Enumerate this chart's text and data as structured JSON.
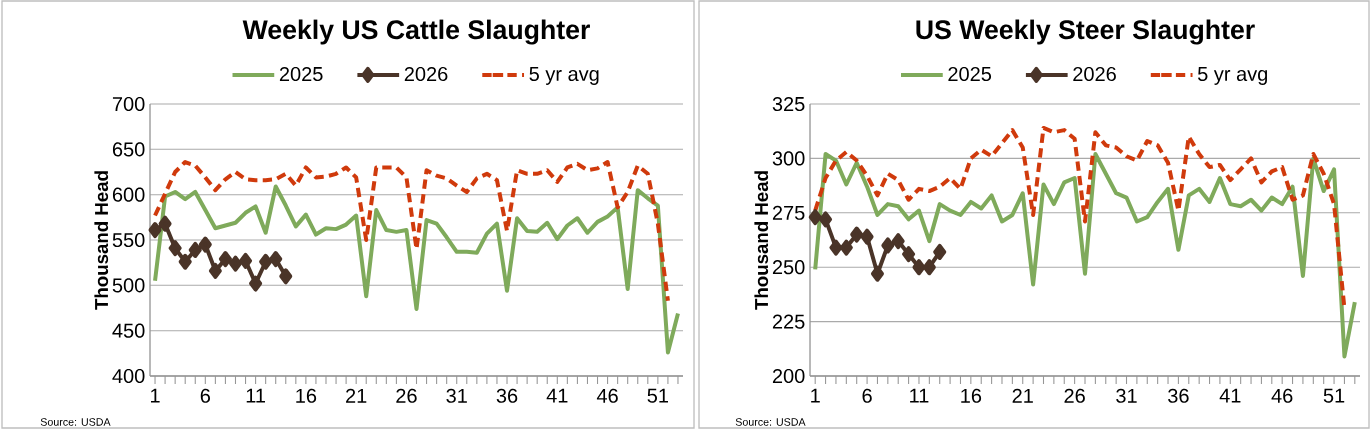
{
  "chart_data": [
    {
      "type": "line",
      "title": "Weekly US Cattle Slaughter",
      "ylabel": "Thousand Head",
      "categories": [
        "1",
        null,
        null,
        null,
        null,
        "6",
        null,
        null,
        null,
        null,
        "11",
        null,
        null,
        null,
        null,
        "16",
        null,
        null,
        null,
        null,
        "21",
        null,
        null,
        null,
        null,
        "26",
        null,
        null,
        null,
        null,
        "31",
        null,
        null,
        null,
        null,
        "36",
        null,
        null,
        null,
        null,
        "41",
        null,
        null,
        null,
        null,
        "46",
        null,
        null,
        null,
        null,
        "51",
        null,
        null
      ],
      "series": [
        {
          "name": "2025",
          "color": "#7faa5b",
          "line_style": "solid",
          "marker": "none",
          "values": [
            505,
            598,
            603,
            595,
            603,
            583,
            563,
            566,
            569,
            580,
            587,
            558,
            609,
            588,
            565,
            578,
            556,
            563,
            562,
            567,
            577,
            488,
            583,
            561,
            559,
            561,
            474,
            572,
            568,
            553,
            537,
            537,
            536,
            557,
            568,
            494,
            574,
            560,
            559,
            569,
            551,
            566,
            574,
            558,
            570,
            576,
            586,
            496,
            605,
            596,
            588,
            426,
            469
          ]
        },
        {
          "name": "2026",
          "color": "#4a3428",
          "line_style": "solid",
          "marker": "diamond",
          "values": [
            561,
            568,
            541,
            526,
            539,
            545,
            516,
            529,
            524,
            527,
            502,
            526,
            529,
            510,
            null,
            null,
            null,
            null,
            null,
            null,
            null,
            null,
            null,
            null,
            null,
            null,
            null,
            null,
            null,
            null,
            null,
            null,
            null,
            null,
            null,
            null,
            null,
            null,
            null,
            null,
            null,
            null,
            null,
            null,
            null,
            null,
            null,
            null,
            null,
            null,
            null,
            null,
            null
          ]
        },
        {
          "name": "5 yr avg",
          "color": "#d03a0c",
          "line_style": "dashed",
          "marker": "none",
          "values": [
            577,
            601,
            625,
            636,
            632,
            619,
            605,
            617,
            625,
            617,
            616,
            616,
            617,
            623,
            610,
            630,
            619,
            620,
            623,
            630,
            619,
            550,
            630,
            630,
            630,
            619,
            540,
            627,
            621,
            618,
            610,
            603,
            618,
            623,
            616,
            560,
            627,
            623,
            623,
            627,
            614,
            630,
            634,
            627,
            629,
            636,
            586,
            603,
            632,
            623,
            568,
            483,
            null
          ]
        }
      ],
      "ylim": [
        400,
        700
      ],
      "yticks": [
        400,
        450,
        500,
        550,
        600,
        650,
        700
      ],
      "grid": "y",
      "legend": "top",
      "annotations": [
        "Source: USDA"
      ]
    },
    {
      "type": "line",
      "title": "US Weekly Steer Slaughter",
      "ylabel": "Thousand Head",
      "categories": [
        "1",
        null,
        null,
        null,
        null,
        "6",
        null,
        null,
        null,
        null,
        "11",
        null,
        null,
        null,
        null,
        "16",
        null,
        null,
        null,
        null,
        "21",
        null,
        null,
        null,
        null,
        "26",
        null,
        null,
        null,
        null,
        "31",
        null,
        null,
        null,
        null,
        "36",
        null,
        null,
        null,
        null,
        "41",
        null,
        null,
        null,
        null,
        "46",
        null,
        null,
        null,
        null,
        "51",
        null,
        null
      ],
      "series": [
        {
          "name": "2025",
          "color": "#7faa5b",
          "line_style": "solid",
          "marker": "none",
          "values": [
            249,
            302,
            299,
            288,
            298,
            287,
            274,
            279,
            278,
            272,
            276,
            262,
            279,
            276,
            274,
            280,
            277,
            283,
            271,
            274,
            284,
            242,
            288,
            279,
            289,
            291,
            247,
            302,
            293,
            284,
            282,
            271,
            273,
            280,
            286,
            258,
            283,
            286,
            280,
            291,
            279,
            278,
            281,
            276,
            282,
            279,
            287,
            246,
            300,
            285,
            295,
            209,
            234
          ]
        },
        {
          "name": "2026",
          "color": "#4a3428",
          "line_style": "solid",
          "marker": "diamond",
          "values": [
            273,
            272,
            259,
            259,
            265,
            264,
            247,
            260,
            262,
            256,
            250,
            250,
            257,
            null,
            null,
            null,
            null,
            null,
            null,
            null,
            null,
            null,
            null,
            null,
            null,
            null,
            null,
            null,
            null,
            null,
            null,
            null,
            null,
            null,
            null,
            null,
            null,
            null,
            null,
            null,
            null,
            null,
            null,
            null,
            null,
            null,
            null,
            null,
            null,
            null,
            null,
            null,
            null
          ]
        },
        {
          "name": "5 yr avg",
          "color": "#d03a0c",
          "line_style": "dashed",
          "marker": "none",
          "values": [
            276,
            291,
            299,
            303,
            299,
            292,
            283,
            293,
            290,
            281,
            286,
            285,
            287,
            291,
            286,
            300,
            304,
            301,
            307,
            313,
            305,
            274,
            314,
            312,
            313,
            309,
            271,
            312,
            306,
            305,
            301,
            299,
            308,
            306,
            298,
            276,
            310,
            302,
            296,
            297,
            290,
            295,
            300,
            289,
            294,
            296,
            281,
            283,
            302,
            293,
            279,
            231,
            null
          ]
        }
      ],
      "ylim": [
        200,
        325
      ],
      "yticks": [
        200,
        225,
        250,
        275,
        300,
        325
      ],
      "grid": "y",
      "legend": "top",
      "annotations": [
        "Source: USDA"
      ]
    }
  ]
}
